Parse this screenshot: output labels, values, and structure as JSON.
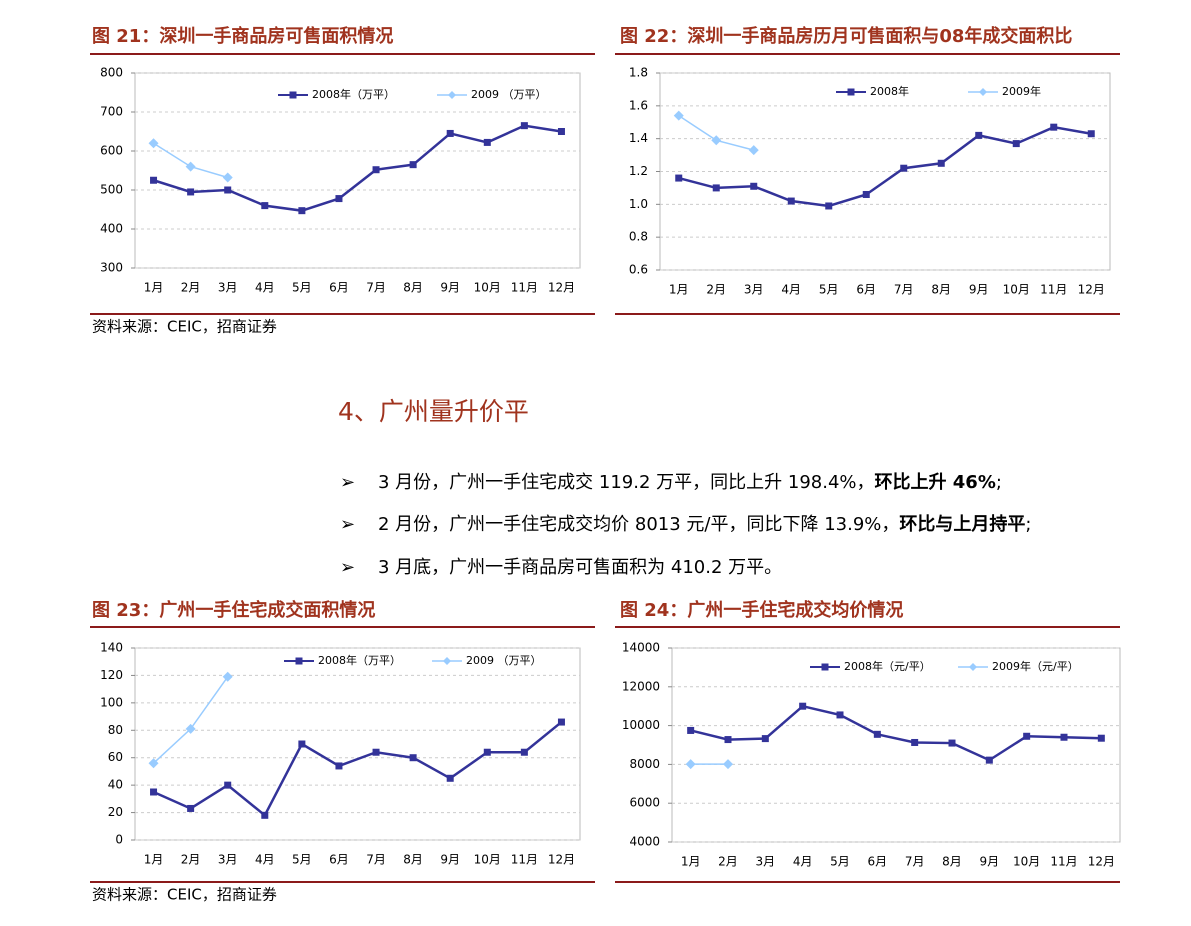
{
  "section_heading": "4、广州量升价平",
  "bullets": [
    [
      "3 月份，广州一手住宅成交 119.2 万平，同比上升 198.4%，",
      "环比上升 46%",
      ";"
    ],
    [
      "2 月份，广州一手住宅成交均价 8013 元/平，同比下降 13.9%，",
      "环比与上月持平",
      ";"
    ],
    [
      "3 月底，广州一手商品房可售面积为 410.2 万平。"
    ]
  ],
  "sources": [
    "资料来源：CEIC，招商证券",
    "资料来源：CEIC，招商证券"
  ],
  "chart_data": [
    {
      "type": "line",
      "title": "图 21：深圳一手商品房可售面积情况",
      "categories": [
        "1月",
        "2月",
        "3月",
        "4月",
        "5月",
        "6月",
        "7月",
        "8月",
        "9月",
        "10月",
        "11月",
        "12月"
      ],
      "series": [
        {
          "name": "2008年（万平）",
          "color": "#333399",
          "values": [
            525,
            495,
            500,
            460,
            447,
            478,
            552,
            565,
            645,
            622,
            665,
            650
          ]
        },
        {
          "name": "2009 （万平）",
          "color": "#99ccff",
          "values": [
            620,
            560,
            532,
            null,
            null,
            null,
            null,
            null,
            null,
            null,
            null,
            null
          ]
        }
      ],
      "ylim": [
        300,
        800
      ],
      "yticks": [
        300,
        400,
        500,
        600,
        700,
        800
      ],
      "grid": true
    },
    {
      "type": "line",
      "title": "图 22：深圳一手商品房历月可售面积与08年成交面积比",
      "categories": [
        "1月",
        "2月",
        "3月",
        "4月",
        "5月",
        "6月",
        "7月",
        "8月",
        "9月",
        "10月",
        "11月",
        "12月"
      ],
      "series": [
        {
          "name": "2008年",
          "color": "#333399",
          "values": [
            1.16,
            1.1,
            1.11,
            1.02,
            0.99,
            1.06,
            1.22,
            1.25,
            1.42,
            1.37,
            1.47,
            1.43
          ]
        },
        {
          "name": "2009年",
          "color": "#99ccff",
          "values": [
            1.54,
            1.39,
            1.33,
            null,
            null,
            null,
            null,
            null,
            null,
            null,
            null,
            null
          ]
        }
      ],
      "ylim": [
        0.6,
        1.8
      ],
      "yticks": [
        0.6,
        0.8,
        {
          "value": 1,
          "label": "1.0"
        },
        1.2,
        1.4,
        1.6,
        1.8
      ],
      "grid": true
    },
    {
      "type": "line",
      "title": "图 23：广州一手住宅成交面积情况",
      "categories": [
        "1月",
        "2月",
        "3月",
        "4月",
        "5月",
        "6月",
        "7月",
        "8月",
        "9月",
        "10月",
        "11月",
        "12月"
      ],
      "series": [
        {
          "name": "2008年（万平）",
          "color": "#333399",
          "values": [
            35,
            23,
            40,
            18,
            70,
            54,
            64,
            60,
            45,
            64,
            64,
            86
          ]
        },
        {
          "name": "2009 （万平）",
          "color": "#99ccff",
          "values": [
            56,
            81,
            119,
            null,
            null,
            null,
            null,
            null,
            null,
            null,
            null,
            null
          ]
        }
      ],
      "ylim": [
        0,
        140
      ],
      "yticks": [
        0,
        20,
        40,
        60,
        80,
        100,
        120,
        140
      ],
      "grid": true
    },
    {
      "type": "line",
      "title": "图 24：广州一手住宅成交均价情况",
      "categories": [
        "1月",
        "2月",
        "3月",
        "4月",
        "5月",
        "6月",
        "7月",
        "8月",
        "9月",
        "10月",
        "11月",
        "12月"
      ],
      "series": [
        {
          "name": "2008年（元/平）",
          "color": "#333399",
          "values": [
            9750,
            9280,
            9330,
            11000,
            10550,
            9550,
            9130,
            9100,
            8220,
            9450,
            9400,
            9350
          ]
        },
        {
          "name": "2009年（元/平）",
          "color": "#99ccff",
          "values": [
            8013,
            8013,
            null,
            null,
            null,
            null,
            null,
            null,
            null,
            null,
            null,
            null
          ]
        }
      ],
      "ylim": [
        4000,
        14000
      ],
      "yticks": [
        4000,
        6000,
        8000,
        10000,
        12000,
        14000
      ],
      "grid": true
    }
  ]
}
